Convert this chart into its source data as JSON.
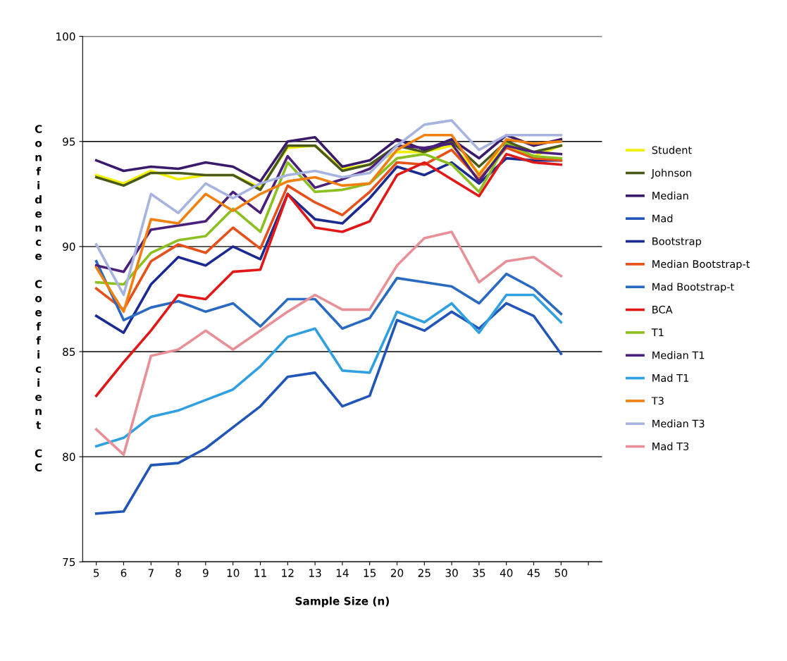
{
  "chart_data": {
    "type": "line",
    "xlabel": "Sample Size (n)",
    "ylabel": "Confidence Coefficient CC",
    "categories": [
      "5",
      "6",
      "7",
      "8",
      "9",
      "10",
      "11",
      "12",
      "13",
      "14",
      "15",
      "20",
      "25",
      "30",
      "35",
      "40",
      "45",
      "50",
      null
    ],
    "ylim": [
      75,
      100
    ],
    "yticks": [
      75,
      80,
      85,
      90,
      95,
      100
    ],
    "grid": "y",
    "legend": "right",
    "marker": "none",
    "line_style": "solid",
    "series": [
      {
        "name": "Student",
        "color": "#f0f000",
        "values": [
          93.4,
          93.0,
          93.6,
          93.2,
          93.4,
          93.4,
          92.8,
          94.7,
          94.8,
          93.7,
          93.9,
          94.5,
          94.5,
          94.8,
          93.5,
          94.8,
          94.3,
          94.8,
          null
        ]
      },
      {
        "name": "Johnson",
        "color": "#4a5a1a",
        "values": [
          93.3,
          92.9,
          93.5,
          93.5,
          93.4,
          93.4,
          92.7,
          94.8,
          94.8,
          93.6,
          93.9,
          94.8,
          94.5,
          95.0,
          93.8,
          95.0,
          94.5,
          94.8,
          null
        ]
      },
      {
        "name": "Median",
        "color": "#3a1a6a",
        "values": [
          94.1,
          93.6,
          93.8,
          93.7,
          94.0,
          93.8,
          93.1,
          95.0,
          95.2,
          93.8,
          94.1,
          95.1,
          94.6,
          95.1,
          94.2,
          95.3,
          94.8,
          95.1,
          null
        ]
      },
      {
        "name": "Mad",
        "color": "#2255b8",
        "values": [
          77.3,
          77.4,
          79.6,
          79.7,
          80.4,
          81.4,
          82.4,
          83.8,
          84.0,
          82.4,
          82.9,
          86.5,
          86.0,
          86.9,
          86.1,
          87.3,
          86.7,
          84.9,
          null
        ]
      },
      {
        "name": "Bootstrap",
        "color": "#1a2a90",
        "values": [
          86.7,
          85.9,
          88.2,
          89.5,
          89.1,
          90.0,
          89.4,
          92.5,
          91.3,
          91.1,
          92.3,
          93.8,
          93.4,
          94.0,
          93.0,
          94.2,
          94.1,
          94.1,
          null
        ]
      },
      {
        "name": "Median Bootstrap-t",
        "color": "#e8501a",
        "values": [
          88.0,
          87.0,
          89.3,
          90.1,
          89.7,
          90.9,
          89.9,
          92.9,
          92.1,
          91.5,
          92.6,
          94.0,
          93.9,
          94.6,
          93.2,
          94.7,
          94.2,
          94.1,
          null
        ]
      },
      {
        "name": "Mad Bootstrap-t",
        "color": "#2a6ac0",
        "values": [
          89.3,
          86.5,
          87.1,
          87.4,
          86.9,
          87.3,
          86.2,
          87.5,
          87.5,
          86.1,
          86.6,
          88.5,
          88.3,
          88.1,
          87.3,
          88.7,
          88.0,
          86.8,
          null
        ]
      },
      {
        "name": "BCA",
        "color": "#e01818",
        "values": [
          82.9,
          84.5,
          86.0,
          87.7,
          87.5,
          88.8,
          88.9,
          92.5,
          90.9,
          90.7,
          91.2,
          93.4,
          94.0,
          93.2,
          92.4,
          94.4,
          94.0,
          93.9,
          null
        ]
      },
      {
        "name": "T1",
        "color": "#8cc020",
        "values": [
          88.3,
          88.2,
          89.7,
          90.3,
          90.5,
          91.8,
          90.7,
          94.0,
          92.6,
          92.7,
          93.0,
          94.2,
          94.4,
          93.9,
          92.6,
          94.9,
          94.3,
          94.2,
          null
        ]
      },
      {
        "name": "Median T1",
        "color": "#4a207a",
        "values": [
          89.1,
          88.8,
          90.8,
          91.0,
          91.2,
          92.6,
          91.6,
          94.3,
          92.8,
          93.2,
          93.7,
          94.8,
          94.7,
          94.9,
          93.1,
          94.8,
          94.5,
          94.4,
          null
        ]
      },
      {
        "name": "Mad T1",
        "color": "#30a0e0",
        "values": [
          80.5,
          80.9,
          81.9,
          82.2,
          82.7,
          83.2,
          84.3,
          85.7,
          86.1,
          84.1,
          84.0,
          86.9,
          86.4,
          87.3,
          85.9,
          87.7,
          87.7,
          86.4,
          null
        ]
      },
      {
        "name": "T3",
        "color": "#f08010",
        "values": [
          89.0,
          86.9,
          91.3,
          91.1,
          92.5,
          91.7,
          92.5,
          93.1,
          93.3,
          92.9,
          93.0,
          94.6,
          95.3,
          95.3,
          93.4,
          95.1,
          94.9,
          95.0,
          null
        ]
      },
      {
        "name": "Median T3",
        "color": "#a8b4e0",
        "values": [
          90.1,
          87.7,
          92.5,
          91.6,
          93.0,
          92.3,
          93.0,
          93.4,
          93.6,
          93.3,
          93.5,
          94.8,
          95.8,
          96.0,
          94.6,
          95.3,
          95.3,
          95.3,
          null
        ]
      },
      {
        "name": "Mad T3",
        "color": "#e89098",
        "values": [
          81.3,
          80.1,
          84.8,
          85.1,
          86.0,
          85.1,
          86.0,
          86.9,
          87.7,
          87.0,
          87.0,
          89.1,
          90.4,
          90.7,
          88.3,
          89.3,
          89.5,
          88.6,
          null
        ]
      }
    ]
  }
}
